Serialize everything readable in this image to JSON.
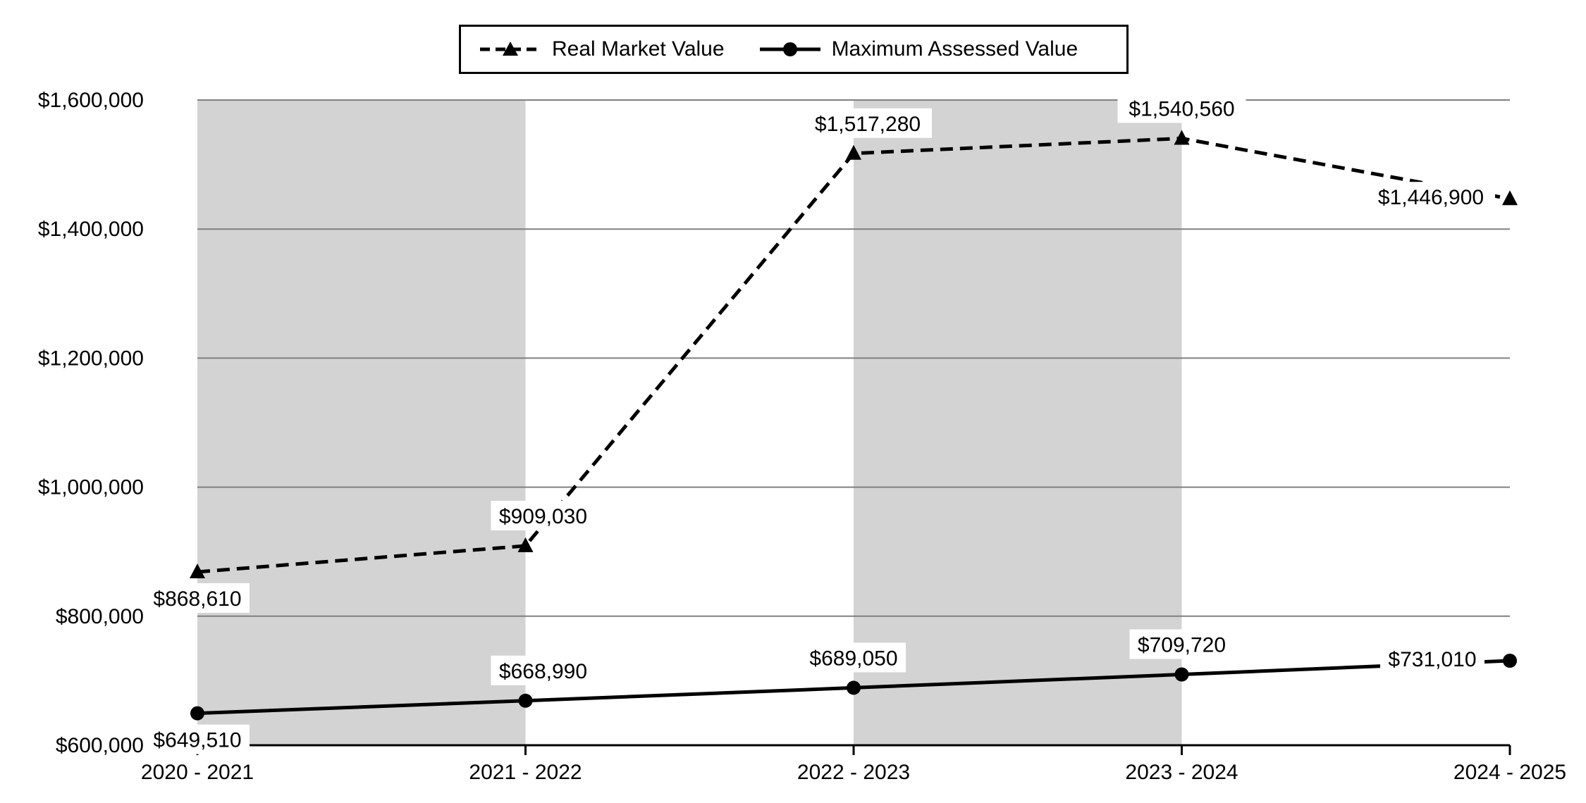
{
  "chart_data": {
    "type": "line",
    "title": "",
    "xlabel": "",
    "ylabel": "",
    "categories": [
      "2020 - 2021",
      "2021 - 2022",
      "2022 - 2023",
      "2023 - 2024",
      "2024 - 2025"
    ],
    "ylim": [
      600000,
      1600000
    ],
    "yticks": [
      600000,
      800000,
      1000000,
      1200000,
      1400000,
      1600000
    ],
    "ytick_labels": [
      "$600,000",
      "$800,000",
      "$1,000,000",
      "$1,200,000",
      "$1,400,000",
      "$1,600,000"
    ],
    "grid": true,
    "shaded_bands": [
      "2020 - 2021 to 2021 - 2022",
      "2022 - 2023 to 2023 - 2024"
    ],
    "legend_position": "top-center",
    "series": [
      {
        "name": "Real Market Value",
        "style": "dashed",
        "marker": "triangle",
        "values": [
          868610,
          909030,
          1517280,
          1540560,
          1446900
        ],
        "labels": [
          "$868,610",
          "$909,030",
          "$1,517,280",
          "$1,540,560",
          "$1,446,900"
        ]
      },
      {
        "name": "Maximum Assessed Value",
        "style": "solid",
        "marker": "circle",
        "values": [
          649510,
          668990,
          689050,
          709720,
          731010
        ],
        "labels": [
          "$649,510",
          "$668,990",
          "$689,050",
          "$709,720",
          "$731,010"
        ]
      }
    ]
  },
  "colors": {
    "line": "#000000",
    "band": "#d3d3d3",
    "grid": "#808080"
  }
}
